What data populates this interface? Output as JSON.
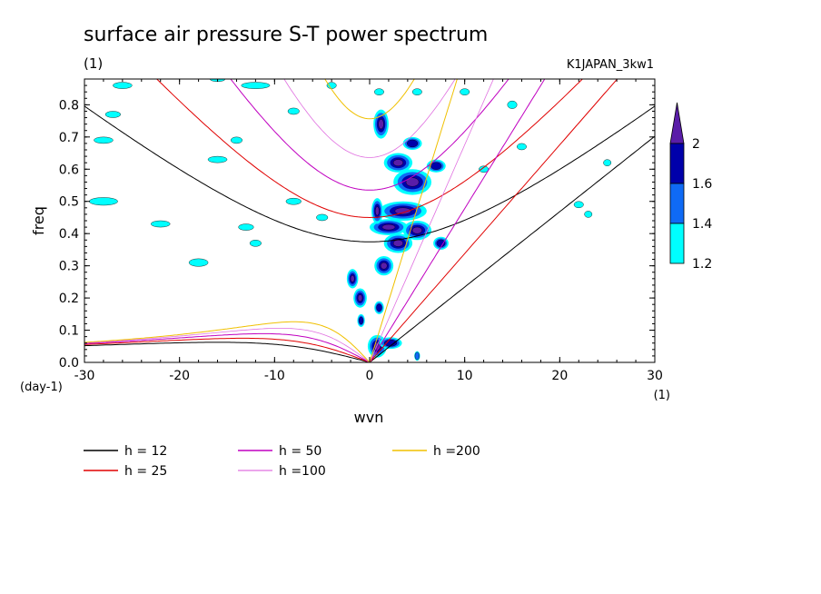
{
  "chart_data": {
    "type": "heatmap",
    "title": "surface air pressure S-T power spectrum",
    "subtitle_left": "(1)",
    "subtitle_right": "K1JAPAN_3kw1",
    "xlabel": "wvn",
    "ylabel": "freq",
    "x_unit": "(1)",
    "y_unit": "(day-1)",
    "xlim": [
      -30,
      30
    ],
    "ylim": [
      0,
      0.88
    ],
    "x_ticks": [
      -30,
      -20,
      -10,
      0,
      10,
      20,
      30
    ],
    "x_tick_labels": [
      "-30",
      "-20",
      "-10",
      "0",
      "10",
      "20",
      "30"
    ],
    "y_ticks": [
      0,
      0.1,
      0.2,
      0.3,
      0.4,
      0.5,
      0.6,
      0.7,
      0.8
    ],
    "y_tick_labels": [
      "0.0",
      "0.1",
      "0.2",
      "0.3",
      "0.4",
      "0.5",
      "0.6",
      "0.7",
      "0.8"
    ],
    "colorbar": {
      "levels": [
        1.2,
        1.4,
        1.6,
        2
      ],
      "labels": [
        "1.2",
        "1.4",
        "1.6",
        "2"
      ],
      "colors": [
        "#00ffff",
        "#0f6af5",
        "#0000aa",
        "#5a1da8"
      ]
    },
    "contour_regions": [
      {
        "x": 0.8,
        "y": 0.05,
        "rx": 1.0,
        "ry": 0.035,
        "level": 4
      },
      {
        "x": 2.2,
        "y": 0.06,
        "rx": 1.2,
        "ry": 0.018,
        "level": 3
      },
      {
        "x": 1.0,
        "y": 0.17,
        "rx": 0.5,
        "ry": 0.02,
        "level": 3
      },
      {
        "x": -1.0,
        "y": 0.2,
        "rx": 0.7,
        "ry": 0.03,
        "level": 4
      },
      {
        "x": -1.8,
        "y": 0.26,
        "rx": 0.6,
        "ry": 0.03,
        "level": 4
      },
      {
        "x": -0.9,
        "y": 0.13,
        "rx": 0.4,
        "ry": 0.02,
        "level": 3
      },
      {
        "x": 1.5,
        "y": 0.3,
        "rx": 1.0,
        "ry": 0.03,
        "level": 4
      },
      {
        "x": 3.0,
        "y": 0.37,
        "rx": 1.5,
        "ry": 0.03,
        "level": 4
      },
      {
        "x": 2.0,
        "y": 0.42,
        "rx": 2.0,
        "ry": 0.025,
        "level": 4
      },
      {
        "x": 3.5,
        "y": 0.47,
        "rx": 2.5,
        "ry": 0.03,
        "level": 4
      },
      {
        "x": 5.0,
        "y": 0.41,
        "rx": 1.5,
        "ry": 0.03,
        "level": 4
      },
      {
        "x": 4.5,
        "y": 0.56,
        "rx": 2.0,
        "ry": 0.04,
        "level": 4
      },
      {
        "x": 3.0,
        "y": 0.62,
        "rx": 1.5,
        "ry": 0.03,
        "level": 4
      },
      {
        "x": 4.5,
        "y": 0.68,
        "rx": 1.0,
        "ry": 0.02,
        "level": 3
      },
      {
        "x": 1.2,
        "y": 0.74,
        "rx": 0.8,
        "ry": 0.045,
        "level": 4
      },
      {
        "x": 7.0,
        "y": 0.61,
        "rx": 1.0,
        "ry": 0.02,
        "level": 3
      },
      {
        "x": 7.5,
        "y": 0.37,
        "rx": 0.8,
        "ry": 0.02,
        "level": 3
      },
      {
        "x": 0.8,
        "y": 0.47,
        "rx": 0.6,
        "ry": 0.04,
        "level": 4
      },
      {
        "x": 5.0,
        "y": 0.02,
        "rx": 0.3,
        "ry": 0.015,
        "level": 2
      },
      {
        "x": -28.0,
        "y": 0.69,
        "rx": 1.0,
        "ry": 0.01,
        "level": 1
      },
      {
        "x": -28.0,
        "y": 0.5,
        "rx": 1.5,
        "ry": 0.012,
        "level": 1
      },
      {
        "x": -27.0,
        "y": 0.77,
        "rx": 0.8,
        "ry": 0.01,
        "level": 1
      },
      {
        "x": -26.0,
        "y": 0.86,
        "rx": 1.0,
        "ry": 0.01,
        "level": 1
      },
      {
        "x": -16.0,
        "y": 0.88,
        "rx": 0.8,
        "ry": 0.008,
        "level": 1
      },
      {
        "x": -12.0,
        "y": 0.86,
        "rx": 1.5,
        "ry": 0.01,
        "level": 1
      },
      {
        "x": -16.0,
        "y": 0.63,
        "rx": 1.0,
        "ry": 0.01,
        "level": 1
      },
      {
        "x": -14.0,
        "y": 0.69,
        "rx": 0.6,
        "ry": 0.01,
        "level": 1
      },
      {
        "x": -18.0,
        "y": 0.31,
        "rx": 1.0,
        "ry": 0.012,
        "level": 1
      },
      {
        "x": -22.0,
        "y": 0.43,
        "rx": 1.0,
        "ry": 0.01,
        "level": 1
      },
      {
        "x": -13.0,
        "y": 0.42,
        "rx": 0.8,
        "ry": 0.01,
        "level": 1
      },
      {
        "x": -8.0,
        "y": 0.5,
        "rx": 0.8,
        "ry": 0.01,
        "level": 1
      },
      {
        "x": -8.0,
        "y": 0.78,
        "rx": 0.6,
        "ry": 0.01,
        "level": 1
      },
      {
        "x": -12.0,
        "y": 0.37,
        "rx": 0.6,
        "ry": 0.01,
        "level": 1
      },
      {
        "x": -5.0,
        "y": 0.45,
        "rx": 0.6,
        "ry": 0.01,
        "level": 1
      },
      {
        "x": 1.0,
        "y": 0.84,
        "rx": 0.5,
        "ry": 0.01,
        "level": 1
      },
      {
        "x": 5.0,
        "y": 0.84,
        "rx": 0.5,
        "ry": 0.01,
        "level": 1
      },
      {
        "x": 15.0,
        "y": 0.8,
        "rx": 0.5,
        "ry": 0.012,
        "level": 1
      },
      {
        "x": 16.0,
        "y": 0.67,
        "rx": 0.5,
        "ry": 0.01,
        "level": 1
      },
      {
        "x": 22.0,
        "y": 0.49,
        "rx": 0.5,
        "ry": 0.01,
        "level": 1
      },
      {
        "x": 25.0,
        "y": 0.62,
        "rx": 0.4,
        "ry": 0.01,
        "level": 1
      },
      {
        "x": 23.0,
        "y": 0.46,
        "rx": 0.4,
        "ry": 0.01,
        "level": 1
      },
      {
        "x": 10.0,
        "y": 0.84,
        "rx": 0.5,
        "ry": 0.01,
        "level": 1
      },
      {
        "x": 12.0,
        "y": 0.6,
        "rx": 0.5,
        "ry": 0.01,
        "level": 1
      },
      {
        "x": -4.0,
        "y": 0.86,
        "rx": 0.5,
        "ry": 0.01,
        "level": 1
      }
    ],
    "series": [
      {
        "name": "h = 12",
        "h": 12,
        "color": "#000000",
        "width": 1.0
      },
      {
        "name": "h = 25",
        "h": 25,
        "color": "#e00000",
        "width": 1.0
      },
      {
        "name": "h = 50",
        "h": 50,
        "color": "#c000c0",
        "width": 1.0
      },
      {
        "name": "h =100",
        "h": 100,
        "color": "#e070e0",
        "width": 0.8
      },
      {
        "name": "h =200",
        "h": 200,
        "color": "#f0c000",
        "width": 1.0
      }
    ],
    "legend": {
      "placement": "bottom-left",
      "columns": 3
    }
  }
}
